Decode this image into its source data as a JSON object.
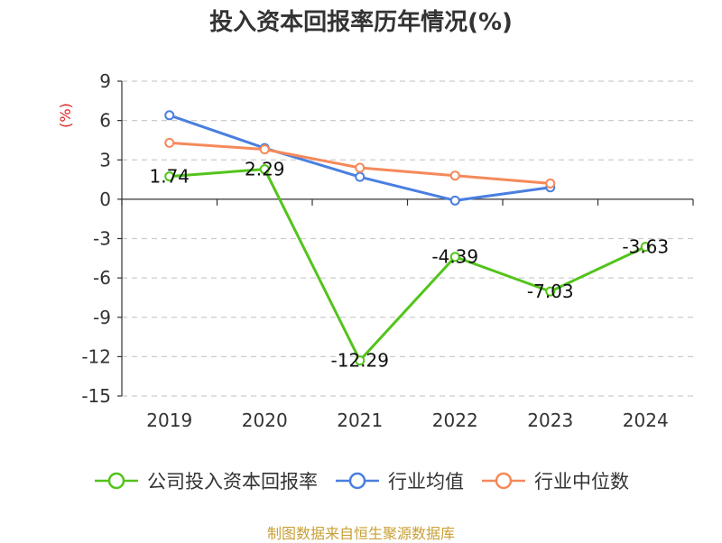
{
  "chart_data": {
    "type": "line",
    "title": "投入资本回报率历年情况(%)",
    "ylabel": "(%)",
    "xlabel": "",
    "categories": [
      "2019",
      "2020",
      "2021",
      "2022",
      "2023",
      "2024"
    ],
    "ylim": [
      -15,
      9
    ],
    "yticks": [
      9,
      6,
      3,
      0,
      -3,
      -6,
      -9,
      -12,
      -15
    ],
    "grid": true,
    "legend_position": "bottom",
    "series": [
      {
        "name": "公司投入资本回报率",
        "color": "#52c41a",
        "values": [
          1.74,
          2.29,
          -12.29,
          -4.39,
          -7.03,
          -3.63
        ],
        "labels": [
          "1.74",
          "2.29",
          "-12.29",
          "-4.39",
          "-7.03",
          "-3.63"
        ]
      },
      {
        "name": "行业均值",
        "color": "#4a7fe0",
        "values": [
          6.4,
          3.9,
          1.7,
          -0.1,
          0.9,
          null
        ]
      },
      {
        "name": "行业中位数",
        "color": "#f5895a",
        "values": [
          4.3,
          3.8,
          2.4,
          1.8,
          1.2,
          null
        ]
      }
    ]
  },
  "source_text": "制图数据来自恒生聚源数据库",
  "colors": {
    "ylabel": "#e02020",
    "source": "#c8a036",
    "axis": "#333333",
    "grid": "#cccccc"
  }
}
